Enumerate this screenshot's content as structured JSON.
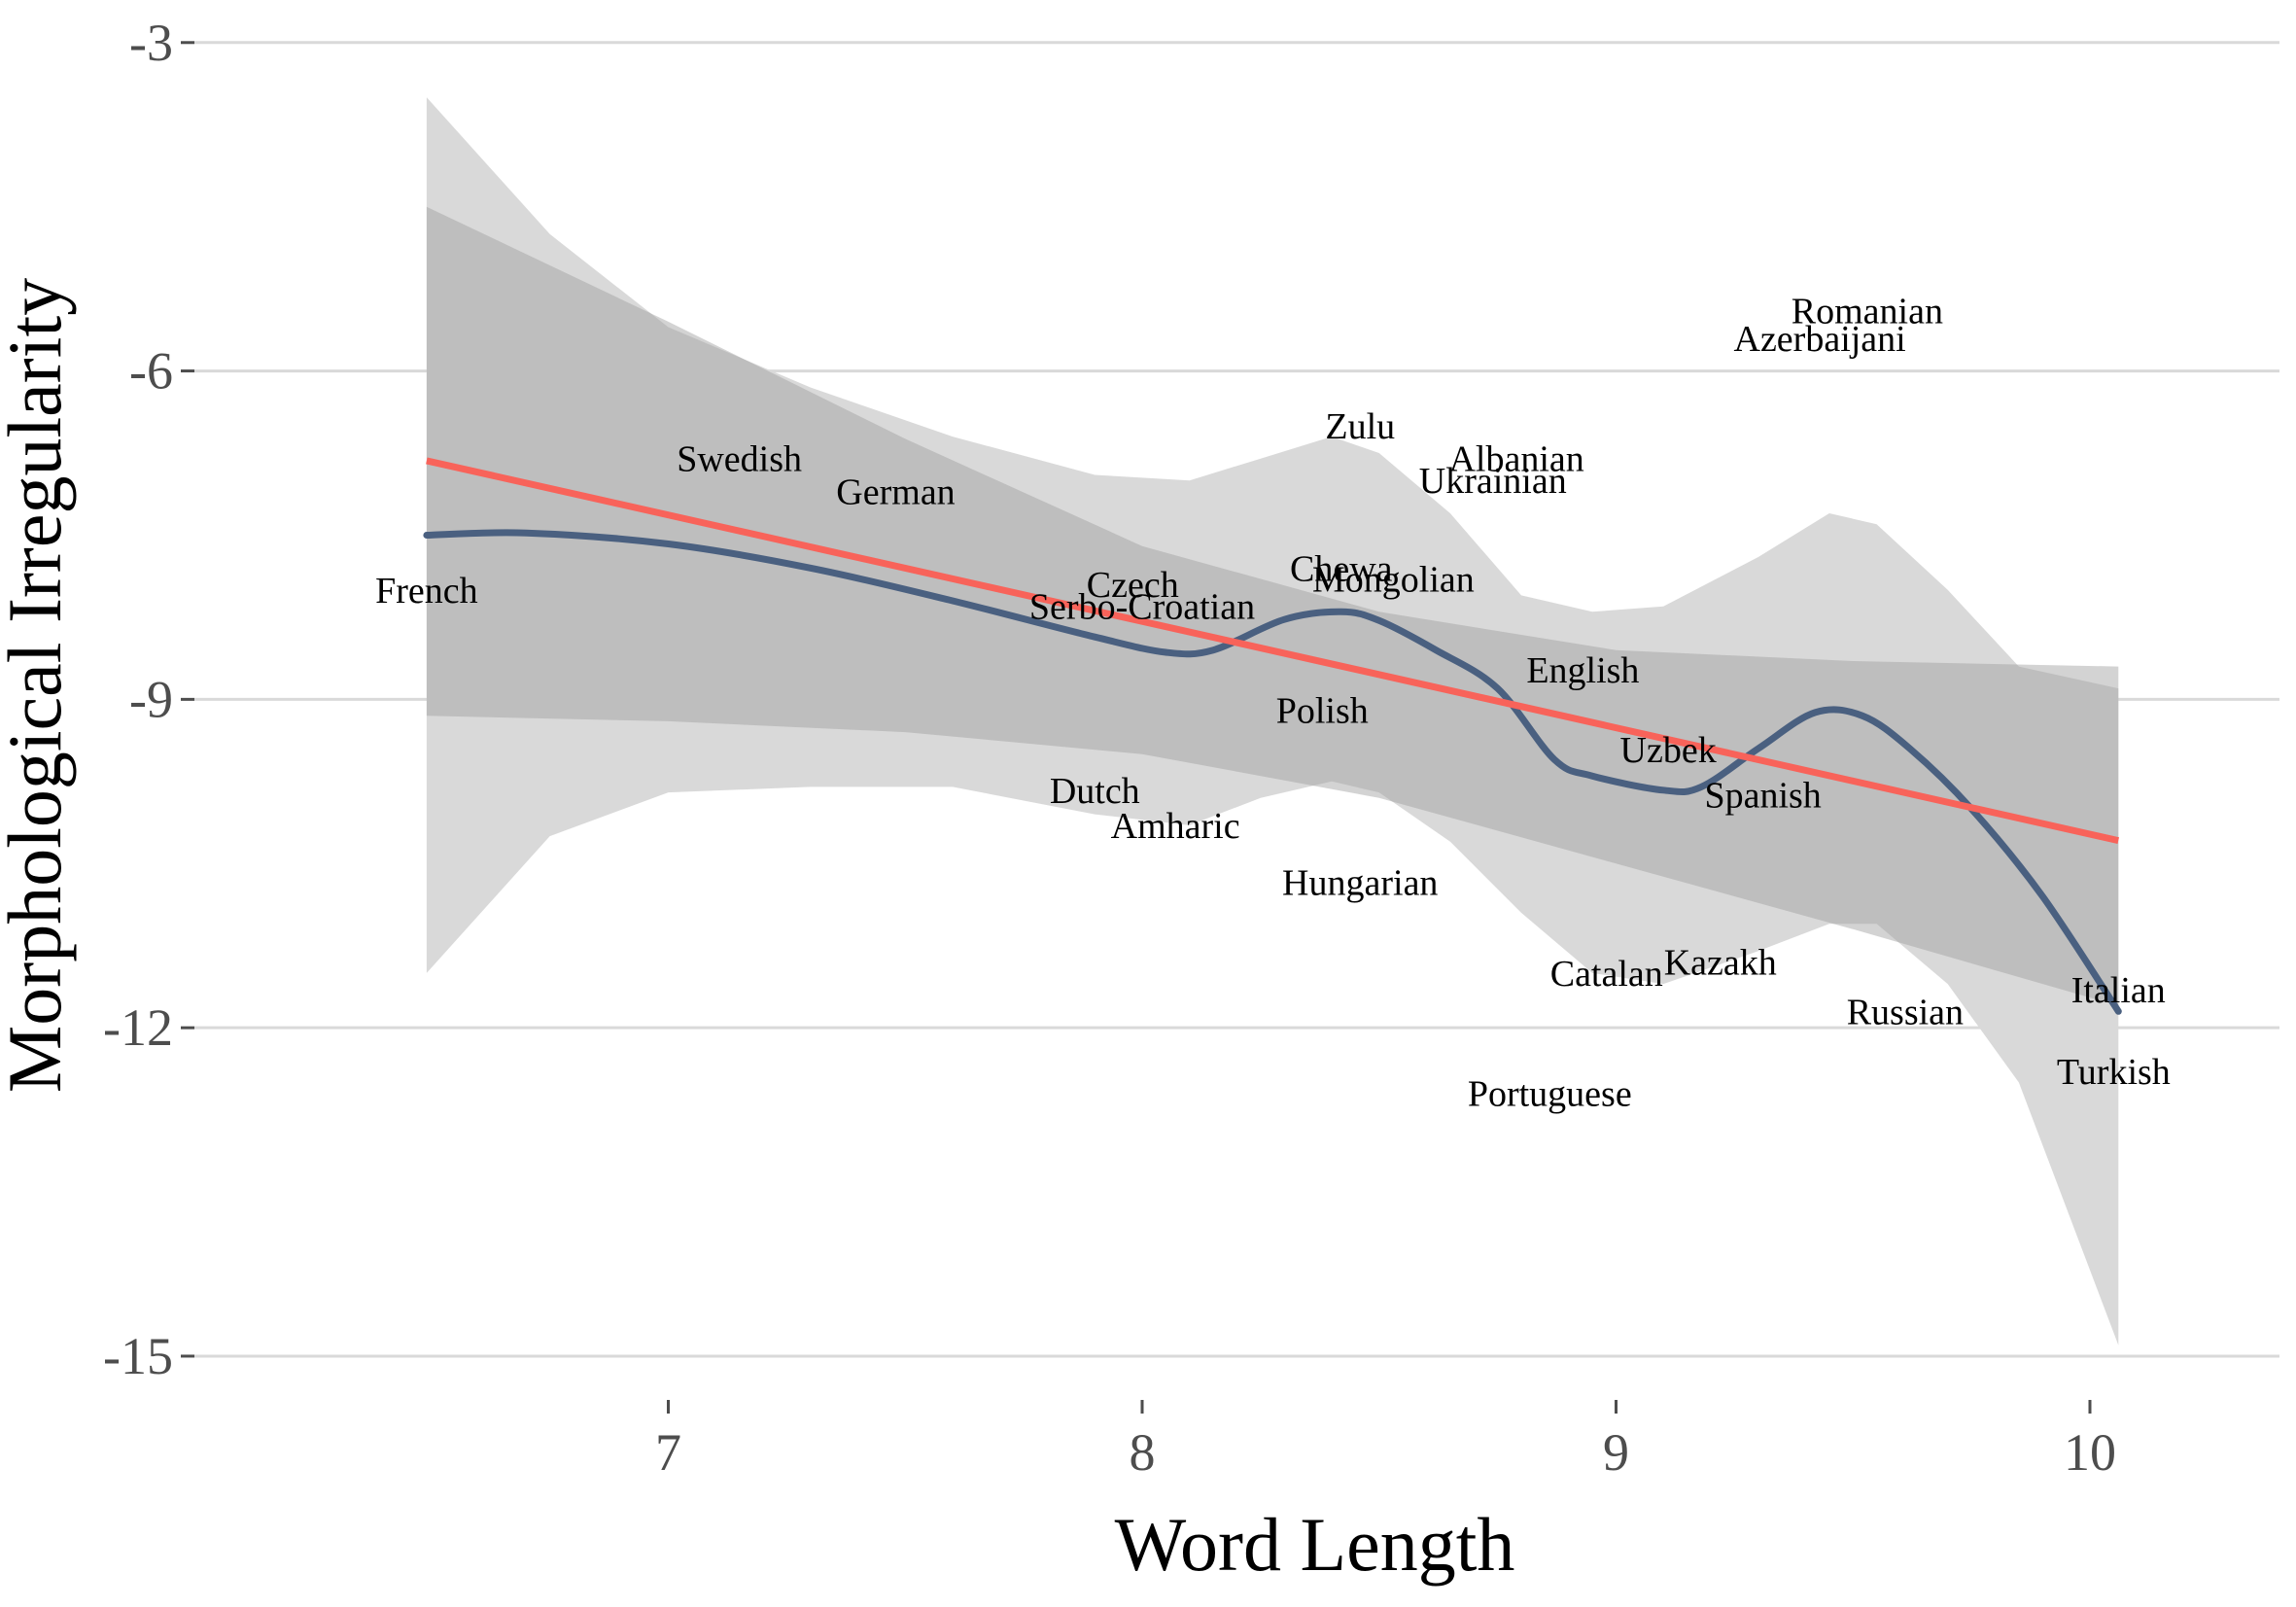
{
  "chart_data": {
    "type": "scatter",
    "xlabel": "Word Length",
    "ylabel": "Morphological Irregularity",
    "xlim": [
      6.0,
      10.4
    ],
    "ylim": [
      -15.4,
      -2.7
    ],
    "x_ticks": [
      7,
      8,
      9,
      10
    ],
    "y_ticks": [
      -3,
      -6,
      -9,
      -12,
      -15
    ],
    "x_tick_labels": [
      "7",
      "8",
      "9",
      "10"
    ],
    "y_tick_labels": [
      "-3",
      "-6",
      "-9",
      "-12",
      "-15"
    ],
    "grid": "horizontal",
    "points": [
      {
        "label": "French",
        "x": 6.49,
        "y": -8.0
      },
      {
        "label": "Swedish",
        "x": 7.15,
        "y": -6.8
      },
      {
        "label": "German",
        "x": 7.48,
        "y": -7.1
      },
      {
        "label": "Czech",
        "x": 7.98,
        "y": -7.95
      },
      {
        "label": "Serbo-Croatian",
        "x": 8.0,
        "y": -8.15
      },
      {
        "label": "Chewa",
        "x": 8.42,
        "y": -7.8
      },
      {
        "label": "Mongolian",
        "x": 8.53,
        "y": -7.9
      },
      {
        "label": "Zulu",
        "x": 8.46,
        "y": -6.5
      },
      {
        "label": "Albanian",
        "x": 8.79,
        "y": -6.8
      },
      {
        "label": "Ukrainian",
        "x": 8.74,
        "y": -7.0
      },
      {
        "label": "Polish",
        "x": 8.38,
        "y": -9.1
      },
      {
        "label": "English",
        "x": 8.93,
        "y": -8.73
      },
      {
        "label": "Uzbek",
        "x": 9.11,
        "y": -9.46
      },
      {
        "label": "Spanish",
        "x": 9.31,
        "y": -9.87
      },
      {
        "label": "Dutch",
        "x": 7.9,
        "y": -9.83
      },
      {
        "label": "Amharic",
        "x": 8.07,
        "y": -10.15
      },
      {
        "label": "Hungarian",
        "x": 8.46,
        "y": -10.67
      },
      {
        "label": "Catalan",
        "x": 8.98,
        "y": -11.5
      },
      {
        "label": "Kazakh",
        "x": 9.22,
        "y": -11.4
      },
      {
        "label": "Romanian",
        "x": 9.53,
        "y": -5.45
      },
      {
        "label": "Azerbaijani",
        "x": 9.43,
        "y": -5.7
      },
      {
        "label": "Russian",
        "x": 9.61,
        "y": -11.85
      },
      {
        "label": "Italian",
        "x": 10.06,
        "y": -11.65
      },
      {
        "label": "Portuguese",
        "x": 8.86,
        "y": -12.6
      },
      {
        "label": "Turkish",
        "x": 10.05,
        "y": -12.4
      }
    ],
    "linear_fit": {
      "color": "#f8635a",
      "x": [
        6.49,
        10.06
      ],
      "y": [
        -6.82,
        -10.29
      ]
    },
    "linear_band": {
      "color": "#bdbdbd",
      "x": [
        6.49,
        7.0,
        7.5,
        8.0,
        8.5,
        9.0,
        9.5,
        10.06
      ],
      "upper": [
        -4.5,
        -5.55,
        -6.62,
        -7.6,
        -8.2,
        -8.55,
        -8.65,
        -8.7
      ],
      "lower": [
        -9.15,
        -9.2,
        -9.3,
        -9.5,
        -9.9,
        -10.5,
        -11.1,
        -11.8
      ]
    },
    "smooth_fit": {
      "color": "#4a6080",
      "x": [
        6.49,
        6.7,
        7.0,
        7.3,
        7.6,
        7.9,
        8.05,
        8.15,
        8.3,
        8.42,
        8.5,
        8.62,
        8.75,
        8.87,
        8.95,
        9.1,
        9.18,
        9.3,
        9.42,
        9.52,
        9.62,
        9.75,
        9.9,
        10.06
      ],
      "y": [
        -7.5,
        -7.48,
        -7.58,
        -7.8,
        -8.1,
        -8.43,
        -8.57,
        -8.55,
        -8.27,
        -8.2,
        -8.28,
        -8.55,
        -8.9,
        -9.55,
        -9.7,
        -9.83,
        -9.8,
        -9.45,
        -9.12,
        -9.15,
        -9.45,
        -10.0,
        -10.8,
        -11.85
      ]
    },
    "smooth_band": {
      "color": "#d9d9d9",
      "x": [
        6.49,
        6.75,
        7.0,
        7.3,
        7.6,
        7.9,
        8.1,
        8.25,
        8.4,
        8.5,
        8.65,
        8.8,
        8.95,
        9.1,
        9.3,
        9.45,
        9.55,
        9.7,
        9.85,
        10.06
      ],
      "upper": [
        -3.5,
        -4.75,
        -5.6,
        -6.15,
        -6.6,
        -6.95,
        -7.0,
        -6.8,
        -6.6,
        -6.75,
        -7.3,
        -8.05,
        -8.2,
        -8.15,
        -7.7,
        -7.3,
        -7.4,
        -8.0,
        -8.7,
        -8.9
      ],
      "lower": [
        -11.5,
        -10.25,
        -9.85,
        -9.8,
        -9.8,
        -10.05,
        -10.15,
        -9.9,
        -9.75,
        -9.85,
        -10.3,
        -10.95,
        -11.5,
        -11.6,
        -11.3,
        -11.05,
        -11.05,
        -11.6,
        -12.5,
        -14.9
      ]
    }
  }
}
